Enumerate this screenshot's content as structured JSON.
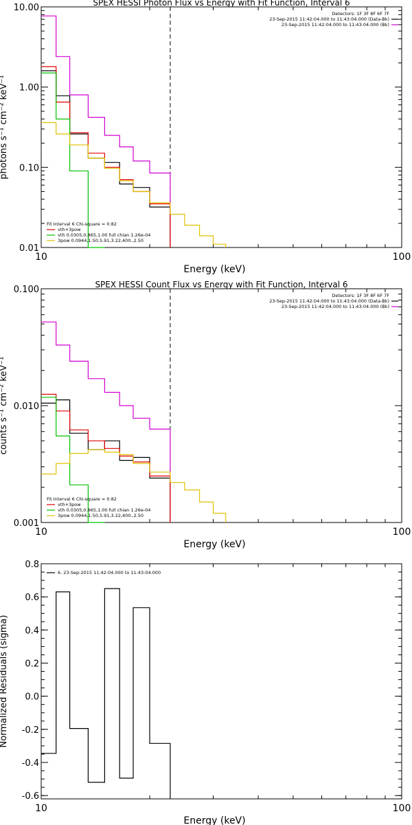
{
  "chart_data": [
    {
      "type": "line",
      "title": "SPEX HESSI Photon Flux vs Energy with Fit Function, Interval 6",
      "xlabel": "Energy (keV)",
      "ylabel": "photons s⁻¹ cm⁻² keV⁻¹",
      "xscale": "log",
      "yscale": "log",
      "xlim": [
        10,
        100
      ],
      "ylim": [
        0.01,
        10
      ],
      "x_ticks": [
        {
          "v": 10,
          "label": "10"
        },
        {
          "v": 100,
          "label": "100"
        }
      ],
      "y_ticks": [
        {
          "v": 0.01,
          "label": "0.01"
        },
        {
          "v": 0.1,
          "label": "0.10"
        },
        {
          "v": 1,
          "label": "1.00"
        },
        {
          "v": 10,
          "label": "10.00"
        }
      ],
      "vline": 22.8,
      "header_lines": [
        "Detectors: 1F 3F 8F 6F 7F",
        "23-Sep-2015 11:42:04.000 to 11:43:04.000 (Data-Bk)",
        "23-Sep-2015 11:42:04.000 to 11:43:04.000 (Bk)"
      ],
      "header_colors": [
        "",
        "#000000",
        "#d000d0"
      ],
      "legend_lines": [
        "Fit Interval 6   Chi-square = 0.82",
        "vth+3pow",
        "vth 0.0305,0.865,1.00  full chian 1.26e-04",
        "3pow 0.0944,1.50,5.91,3.22,400.,2.50"
      ],
      "legend_colors": [
        "",
        "#e00000",
        "#00c000",
        "#e0c000"
      ],
      "series": [
        {
          "color": "#d000d0",
          "edges": [
            10,
            11,
            12,
            13.5,
            15,
            16.5,
            18,
            20,
            22.8
          ],
          "values": [
            7.7,
            2.4,
            0.8,
            0.42,
            0.25,
            0.18,
            0.12,
            0.085
          ]
        },
        {
          "color": "#000000",
          "edges": [
            10,
            11,
            12,
            13.5,
            15,
            16.5,
            18,
            20,
            22.8
          ],
          "values": [
            1.6,
            0.78,
            0.26,
            0.13,
            0.115,
            0.062,
            0.056,
            0.032
          ]
        },
        {
          "color": "#e00000",
          "edges": [
            10,
            11,
            12,
            13.5,
            15,
            16.5,
            18,
            20,
            22.8
          ],
          "values": [
            1.8,
            0.65,
            0.27,
            0.15,
            0.1,
            0.07,
            0.05,
            0.035
          ]
        },
        {
          "color": "#00c000",
          "edges": [
            10,
            11,
            12,
            13.5,
            15
          ],
          "values": [
            1.5,
            0.4,
            0.09,
            0.003
          ]
        },
        {
          "color": "#e0c000",
          "edges": [
            10,
            11,
            12,
            13.5,
            15,
            16.5,
            18,
            20,
            22.8,
            25,
            27.5,
            30,
            32.5
          ],
          "values": [
            0.36,
            0.26,
            0.19,
            0.13,
            0.097,
            0.068,
            0.05,
            0.036,
            0.026,
            0.019,
            0.014,
            0.011
          ]
        }
      ]
    },
    {
      "type": "line",
      "title": "SPEX HESSI Count Flux vs Energy with Fit Function, Interval 6",
      "xlabel": "Energy (keV)",
      "ylabel": "counts s⁻¹ cm⁻² keV⁻¹",
      "xscale": "log",
      "yscale": "log",
      "xlim": [
        10,
        100
      ],
      "ylim": [
        0.001,
        0.1
      ],
      "x_ticks": [
        {
          "v": 10,
          "label": "10"
        },
        {
          "v": 100,
          "label": "100"
        }
      ],
      "y_ticks": [
        {
          "v": 0.001,
          "label": "0.001"
        },
        {
          "v": 0.01,
          "label": "0.010"
        },
        {
          "v": 0.1,
          "label": "0.100"
        }
      ],
      "vline": 22.8,
      "header_lines": [
        "Detectors: 1F 3F 8F 6F 7F",
        "23-Sep-2015 11:42:04.000 to 11:43:04.000 (Data-Bk)",
        "23-Sep-2015 11:42:04.000 to 11:43:04.000 (Bk)"
      ],
      "header_colors": [
        "",
        "#000000",
        "#d000d0"
      ],
      "legend_lines": [
        "Fit Interval 6   Chi-square = 0.82",
        "vth+3pow",
        "vth 0.0305,0.865,1.00  full chian 1.26e-04",
        "3pow 0.0944,1.50,5.91,3.22,400.,2.50"
      ],
      "legend_colors": [
        "",
        "#e00000",
        "#00c000",
        "#e0c000"
      ],
      "series": [
        {
          "color": "#d000d0",
          "edges": [
            10,
            11,
            12,
            13.5,
            15,
            16.5,
            18,
            20,
            22.8
          ],
          "values": [
            0.052,
            0.033,
            0.024,
            0.017,
            0.013,
            0.01,
            0.0078,
            0.0063
          ]
        },
        {
          "color": "#000000",
          "edges": [
            10,
            11,
            12,
            13.5,
            15,
            16.5,
            18,
            20,
            22.8
          ],
          "values": [
            0.0105,
            0.0112,
            0.0058,
            0.0042,
            0.005,
            0.0034,
            0.0036,
            0.0024
          ]
        },
        {
          "color": "#e00000",
          "edges": [
            10,
            11,
            12,
            13.5,
            15,
            16.5,
            18,
            20,
            22.8
          ],
          "values": [
            0.0125,
            0.009,
            0.0062,
            0.005,
            0.0043,
            0.0037,
            0.0033,
            0.0025
          ]
        },
        {
          "color": "#00c000",
          "edges": [
            10,
            11,
            12,
            13.5,
            15
          ],
          "values": [
            0.0118,
            0.0055,
            0.0021,
            0.0006
          ]
        },
        {
          "color": "#e0c000",
          "edges": [
            10,
            11,
            12,
            13.5,
            15,
            16.5,
            18,
            20,
            22.8,
            25,
            27.5,
            30,
            32.5
          ],
          "values": [
            0.0026,
            0.0032,
            0.0039,
            0.0042,
            0.004,
            0.0038,
            0.0032,
            0.0027,
            0.0022,
            0.0019,
            0.0015,
            0.0012
          ]
        }
      ]
    },
    {
      "type": "line",
      "title": "",
      "xlabel": "Energy (keV)",
      "ylabel": "Normalized Residuals (sigma)",
      "xscale": "log",
      "yscale": "linear",
      "xlim": [
        10,
        100
      ],
      "ylim": [
        -0.62,
        0.8
      ],
      "x_ticks": [
        {
          "v": 10,
          "label": "10"
        },
        {
          "v": 100,
          "label": "100"
        }
      ],
      "y_ticks": [
        {
          "v": -0.6,
          "label": "-0.6"
        },
        {
          "v": -0.4,
          "label": "-0.4"
        },
        {
          "v": -0.2,
          "label": "-0.2"
        },
        {
          "v": 0,
          "label": "0.0"
        },
        {
          "v": 0.2,
          "label": "0.2"
        },
        {
          "v": 0.4,
          "label": "0.4"
        },
        {
          "v": 0.6,
          "label": "0.6"
        },
        {
          "v": 0.8,
          "label": "0.8"
        }
      ],
      "legend_lines": [
        "6. 23-Sep-2015 11:42:04.000 to 11:43:04.000"
      ],
      "legend_colors": [
        "#000000"
      ],
      "series": [
        {
          "color": "#000000",
          "edges": [
            10,
            11,
            12,
            13.5,
            15,
            16.5,
            18,
            20,
            22.8
          ],
          "values": [
            -0.345,
            0.63,
            -0.195,
            -0.52,
            0.65,
            -0.495,
            0.535,
            -0.285
          ]
        }
      ]
    }
  ]
}
